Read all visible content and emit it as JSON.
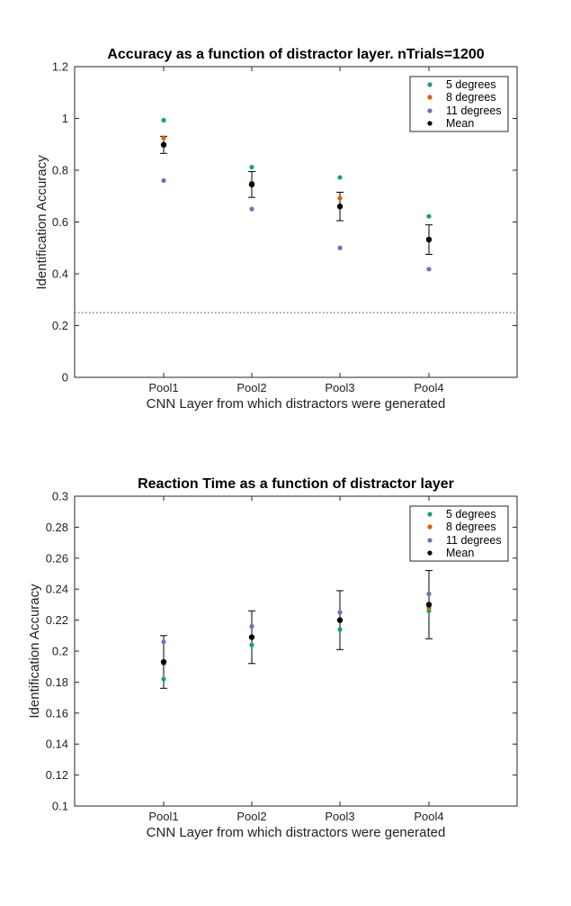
{
  "chart_data": [
    {
      "type": "scatter",
      "title": "Accuracy as a function of distractor layer. nTrials=1200",
      "xlabel": "CNN Layer from which distractors were generated",
      "ylabel": "Identification Accuracy",
      "categories": [
        "Pool1",
        "Pool2",
        "Pool3",
        "Pool4"
      ],
      "ylim": [
        0,
        1.2
      ],
      "yticks": [
        0,
        0.2,
        0.4,
        0.6,
        0.8,
        1,
        1.2
      ],
      "ytick_labels": [
        "0",
        "0.2",
        "0.4",
        "0.6",
        "0.8",
        "1",
        "1.2"
      ],
      "reference_line": 0.25,
      "legend": "top-right",
      "series": [
        {
          "name": "5 degrees",
          "color": "#1b9e77",
          "values": [
            0.993,
            0.812,
            0.772,
            0.622
          ]
        },
        {
          "name": "8 degrees",
          "color": "#d95f02",
          "values": [
            0.925,
            0.752,
            0.692,
            0.535
          ]
        },
        {
          "name": "11 degrees",
          "color": "#7570b3",
          "values": [
            0.76,
            0.65,
            0.5,
            0.418
          ]
        },
        {
          "name": "Mean",
          "color": "#000000",
          "values": [
            0.898,
            0.745,
            0.66,
            0.532
          ],
          "err": [
            0.033,
            0.05,
            0.055,
            0.057
          ]
        }
      ]
    },
    {
      "type": "scatter",
      "title": "Reaction Time as a function of distractor layer",
      "xlabel": "CNN Layer from which distractors were generated",
      "ylabel": "Identification Accuracy",
      "categories": [
        "Pool1",
        "Pool2",
        "Pool3",
        "Pool4"
      ],
      "ylim": [
        0.1,
        0.3
      ],
      "yticks": [
        0.1,
        0.12,
        0.14,
        0.16,
        0.18,
        0.2,
        0.22,
        0.24,
        0.26,
        0.28,
        0.3
      ],
      "ytick_labels": [
        "0.1",
        "0.12",
        "0.14",
        "0.16",
        "0.18",
        "0.2",
        "0.22",
        "0.24",
        "0.26",
        "0.28",
        "0.3"
      ],
      "legend": "top-right",
      "series": [
        {
          "name": "5 degrees",
          "color": "#1b9e77",
          "values": [
            0.182,
            0.204,
            0.214,
            0.226
          ]
        },
        {
          "name": "8 degrees",
          "color": "#d95f02",
          "values": [
            0.192,
            0.209,
            0.22,
            0.228
          ]
        },
        {
          "name": "11 degrees",
          "color": "#7570b3",
          "values": [
            0.206,
            0.216,
            0.225,
            0.237
          ]
        },
        {
          "name": "Mean",
          "color": "#000000",
          "values": [
            0.193,
            0.209,
            0.22,
            0.23
          ],
          "err": [
            0.017,
            0.017,
            0.019,
            0.022
          ]
        }
      ]
    }
  ]
}
